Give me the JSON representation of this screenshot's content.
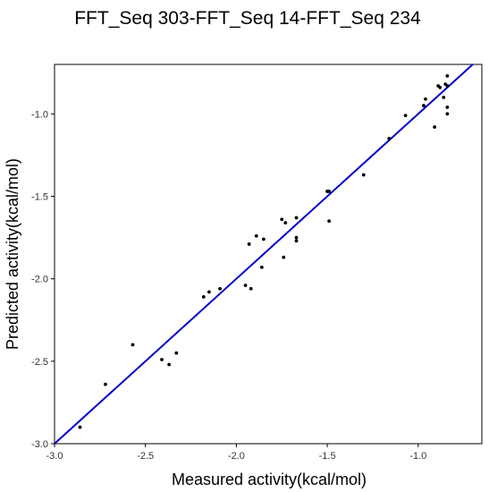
{
  "chart_data": {
    "type": "scatter",
    "title": "FFT_Seq 303-FFT_Seq 14-FFT_Seq 234",
    "xlabel": "Measured activity(kcal/mol)",
    "ylabel": "Predicted activity(kcal/mol)",
    "xlim": [
      -3.0,
      -0.65
    ],
    "ylim": [
      -3.0,
      -0.7
    ],
    "xticks": [
      -3.0,
      -2.5,
      -2.0,
      -1.5,
      -1.0
    ],
    "xtick_labels": [
      "-3.0",
      "-2.5",
      "-2.0",
      "-1.5",
      "-1.0"
    ],
    "yticks": [
      -3.0,
      -2.5,
      -2.0,
      -1.5,
      -1.0
    ],
    "ytick_labels": [
      "-3.0",
      "-2.5",
      "-2.0",
      "-1.5",
      "-1.0"
    ],
    "grid": false,
    "fit_line": {
      "x": [
        -3.0,
        -0.65
      ],
      "y": [
        -3.0,
        -0.65
      ],
      "color": "#0000cc"
    },
    "point_color": "#000000",
    "points": [
      {
        "x": -2.86,
        "y": -2.9
      },
      {
        "x": -2.72,
        "y": -2.64
      },
      {
        "x": -2.57,
        "y": -2.4
      },
      {
        "x": -2.41,
        "y": -2.49
      },
      {
        "x": -2.37,
        "y": -2.52
      },
      {
        "x": -2.33,
        "y": -2.45
      },
      {
        "x": -2.18,
        "y": -2.11
      },
      {
        "x": -2.15,
        "y": -2.08
      },
      {
        "x": -2.09,
        "y": -2.06
      },
      {
        "x": -1.95,
        "y": -2.04
      },
      {
        "x": -1.92,
        "y": -2.06
      },
      {
        "x": -1.93,
        "y": -1.79
      },
      {
        "x": -1.89,
        "y": -1.74
      },
      {
        "x": -1.86,
        "y": -1.93
      },
      {
        "x": -1.85,
        "y": -1.76
      },
      {
        "x": -1.75,
        "y": -1.64
      },
      {
        "x": -1.73,
        "y": -1.66
      },
      {
        "x": -1.74,
        "y": -1.87
      },
      {
        "x": -1.67,
        "y": -1.63
      },
      {
        "x": -1.67,
        "y": -1.75
      },
      {
        "x": -1.67,
        "y": -1.77
      },
      {
        "x": -1.5,
        "y": -1.47
      },
      {
        "x": -1.49,
        "y": -1.47
      },
      {
        "x": -1.49,
        "y": -1.65
      },
      {
        "x": -1.3,
        "y": -1.37
      },
      {
        "x": -1.16,
        "y": -1.15
      },
      {
        "x": -1.07,
        "y": -1.01
      },
      {
        "x": -0.97,
        "y": -0.95
      },
      {
        "x": -0.96,
        "y": -0.91
      },
      {
        "x": -0.91,
        "y": -1.08
      },
      {
        "x": -0.89,
        "y": -0.83
      },
      {
        "x": -0.88,
        "y": -0.84
      },
      {
        "x": -0.86,
        "y": -0.9
      },
      {
        "x": -0.85,
        "y": -0.82
      },
      {
        "x": -0.84,
        "y": -0.77
      },
      {
        "x": -0.84,
        "y": -0.83
      },
      {
        "x": -0.84,
        "y": -0.96
      },
      {
        "x": -0.84,
        "y": -1.0
      }
    ]
  }
}
